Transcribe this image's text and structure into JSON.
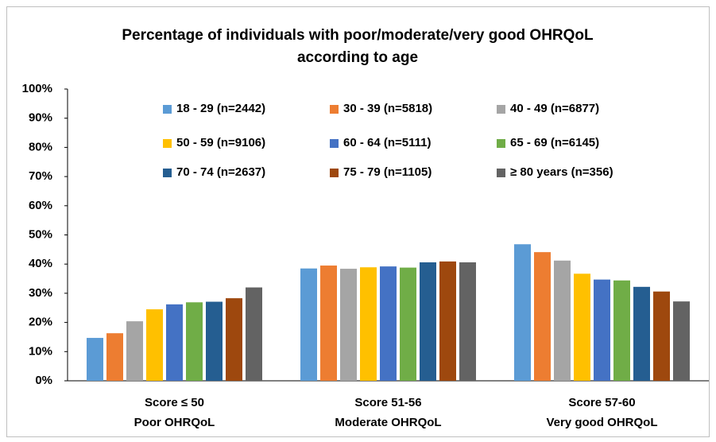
{
  "chart_data": {
    "type": "bar",
    "title": [
      "Percentage of individuals with poor/moderate/very good OHRQoL",
      "according to age"
    ],
    "categories": [
      [
        "Score ≤ 50",
        "Poor OHRQoL"
      ],
      [
        "Score 51-56",
        "Moderate OHRQoL"
      ],
      [
        "Score 57-60",
        "Very good OHRQoL"
      ]
    ],
    "series": [
      {
        "name": "18 - 29 (n=2442)",
        "color": "#5b9bd5",
        "values": [
          14.7,
          38.5,
          46.8
        ]
      },
      {
        "name": "30 - 39 (n=5818)",
        "color": "#ed7d31",
        "values": [
          16.3,
          39.5,
          44.1
        ]
      },
      {
        "name": "40 - 49 (n=6877)",
        "color": "#a5a5a5",
        "values": [
          20.4,
          38.4,
          41.2
        ]
      },
      {
        "name": "50 - 59 (n=9106)",
        "color": "#ffc000",
        "values": [
          24.5,
          38.9,
          36.7
        ]
      },
      {
        "name": "60 - 64 (n=5111)",
        "color": "#4472c4",
        "values": [
          26.2,
          39.2,
          34.7
        ]
      },
      {
        "name": "65 - 69 (n=6145)",
        "color": "#70ad47",
        "values": [
          26.9,
          38.8,
          34.4
        ]
      },
      {
        "name": "70 - 74 (n=2637)",
        "color": "#255e91",
        "values": [
          27.1,
          40.6,
          32.2
        ]
      },
      {
        "name": "75 - 79 (n=1105)",
        "color": "#9e480e",
        "values": [
          28.3,
          40.9,
          30.6
        ]
      },
      {
        "name": "≥ 80 years (n=356)",
        "color": "#636363",
        "values": [
          32.0,
          40.6,
          27.2
        ]
      }
    ],
    "ylim": [
      0,
      100
    ],
    "yticks": [
      {
        "value": 0,
        "label": "0%"
      },
      {
        "value": 10,
        "label": "10%"
      },
      {
        "value": 20,
        "label": "20%"
      },
      {
        "value": 30,
        "label": "30%"
      },
      {
        "value": 40,
        "label": "40%"
      },
      {
        "value": 50,
        "label": "50%"
      },
      {
        "value": 60,
        "label": "60%"
      },
      {
        "value": 70,
        "label": "70%"
      },
      {
        "value": 80,
        "label": "80%"
      },
      {
        "value": 90,
        "label": "90%"
      },
      {
        "value": 100,
        "label": "100%"
      }
    ]
  }
}
